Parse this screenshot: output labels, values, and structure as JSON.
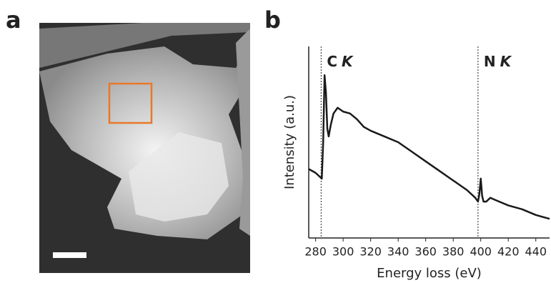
{
  "panels": {
    "a": "a",
    "b": "b"
  },
  "chart_data": {
    "type": "line",
    "xlabel": "Energy loss (eV)",
    "ylabel": "Intensity (a.u.)",
    "xlim": [
      275,
      450
    ],
    "xticks": [
      280,
      300,
      320,
      340,
      360,
      380,
      400,
      420,
      440
    ],
    "ylim": [
      0,
      100
    ],
    "annotations": [
      {
        "label": "C",
        "edge": "K",
        "x": 284
      },
      {
        "label": "N",
        "edge": "K",
        "x": 398
      }
    ],
    "series": [
      {
        "color": "#1a1a1a",
        "x": [
          275,
          280,
          283,
          284.5,
          285.5,
          286.5,
          287.5,
          288.5,
          289.5,
          291,
          293,
          296,
          300,
          305,
          310,
          315,
          320,
          330,
          340,
          350,
          360,
          370,
          380,
          390,
          396,
          398,
          399,
          400,
          401,
          402,
          404,
          407,
          410,
          420,
          430,
          440,
          450
        ],
        "values": [
          36,
          34,
          32,
          31,
          50,
          85,
          76,
          57,
          53,
          59,
          65,
          68,
          66,
          65,
          62,
          58,
          56,
          53,
          50,
          45,
          40,
          35,
          30,
          25,
          21,
          19,
          23,
          31,
          22,
          19,
          19,
          21,
          20,
          17,
          15,
          12,
          10
        ]
      }
    ]
  }
}
